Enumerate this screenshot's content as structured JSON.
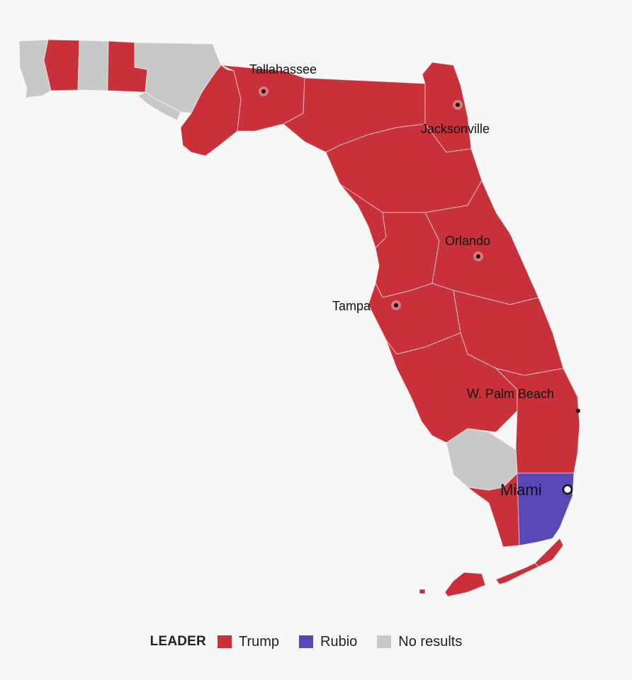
{
  "colors": {
    "trump": "#c8313a",
    "rubio": "#5b46b8",
    "no_results": "#c8c8c8"
  },
  "cities": [
    {
      "name": "Tallahassee"
    },
    {
      "name": "Jacksonville"
    },
    {
      "name": "Orlando"
    },
    {
      "name": "Tampa"
    },
    {
      "name": "W. Palm Beach"
    },
    {
      "name": "Miami"
    }
  ],
  "legend": {
    "title": "LEADER",
    "items": [
      {
        "label": "Trump",
        "color": "#c8313a"
      },
      {
        "label": "Rubio",
        "color": "#5b46b8"
      },
      {
        "label": "No results",
        "color": "#c8c8c8"
      }
    ]
  }
}
